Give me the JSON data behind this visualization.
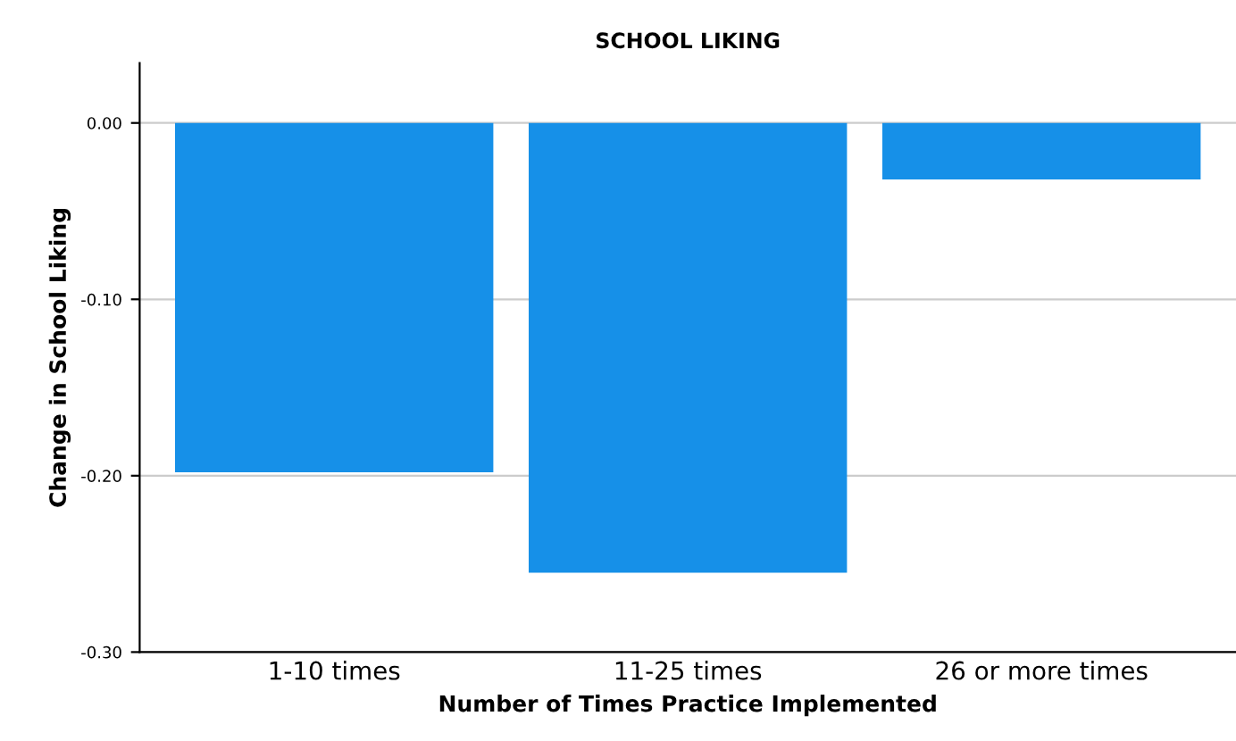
{
  "chart_data": {
    "type": "bar",
    "title": "SCHOOL LIKING",
    "xlabel": "Number of Times Practice Implemented",
    "ylabel": "Change in School Liking",
    "categories": [
      "1-10 times",
      "11-25 times",
      "26 or more times"
    ],
    "values": [
      -0.198,
      -0.255,
      -0.032
    ],
    "color": "#1690e8",
    "ylim": [
      -0.3,
      0.034
    ],
    "yticks": [
      {
        "value": 0.0,
        "label": "0.00"
      },
      {
        "value": -0.1,
        "label": "-0.10"
      },
      {
        "value": -0.2,
        "label": "-0.20"
      },
      {
        "value": -0.3,
        "label": "-0.30"
      }
    ],
    "grid": "y",
    "legend": false
  }
}
